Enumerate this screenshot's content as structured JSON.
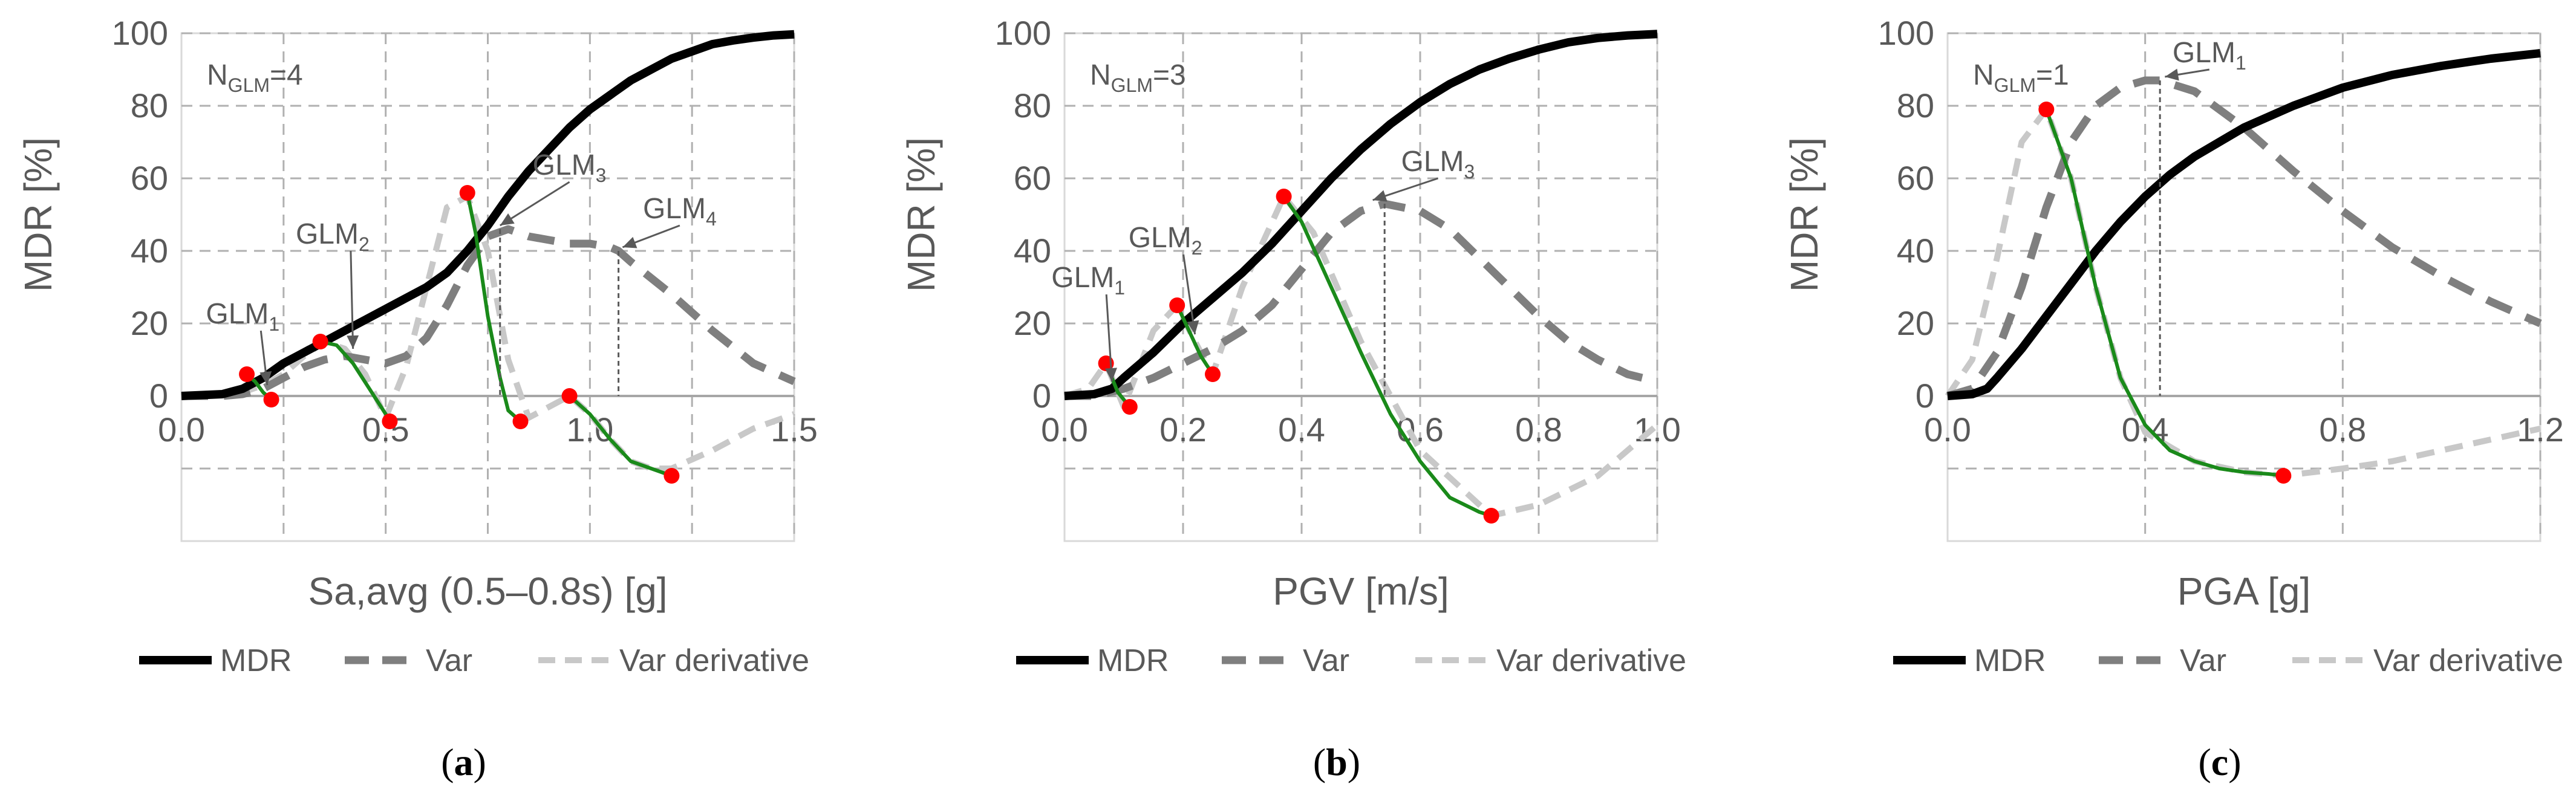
{
  "figure": {
    "colors": {
      "mdr": "#000000",
      "var": "#7f7f7f",
      "var_derivative": "#c8c8c8",
      "segment": "#1a8a1a",
      "point": "#ff0000",
      "grid": "#b0b0b0",
      "axis_text": "#595959",
      "frame": "#d9d9d9"
    }
  },
  "chart_data": [
    {
      "panel": "(a)",
      "panel_letter": "a",
      "type": "line",
      "xlabel": "Sa,avg (0.5–0.8s) [g]",
      "ylabel": "MDR [%]",
      "xlim": [
        0,
        1.5
      ],
      "ylim": [
        -40,
        100
      ],
      "xticks": [
        "0.0",
        "0.5",
        "1.0",
        "1.5"
      ],
      "xtick_values": [
        0,
        0.5,
        1.0,
        1.5
      ],
      "xgrid": [
        0.25,
        0.5,
        0.75,
        1.0,
        1.25,
        1.5
      ],
      "yticks": [
        "100",
        "80",
        "60",
        "40",
        "20",
        "0"
      ],
      "ytick_values": [
        100,
        80,
        60,
        40,
        20,
        0
      ],
      "ngl_label": {
        "prefix": "N",
        "sub": "GLM",
        "suffix": "=4"
      },
      "legend": [
        "MDR",
        "Var",
        "Var derivative"
      ],
      "series": [
        {
          "name": "MDR",
          "style": "mdr",
          "x": [
            0,
            0.1,
            0.15,
            0.2,
            0.25,
            0.3,
            0.35,
            0.4,
            0.45,
            0.5,
            0.55,
            0.6,
            0.65,
            0.7,
            0.75,
            0.8,
            0.85,
            0.9,
            0.95,
            1.0,
            1.05,
            1.1,
            1.15,
            1.2,
            1.25,
            1.3,
            1.35,
            1.4,
            1.45,
            1.5
          ],
          "y": [
            0,
            0.5,
            2,
            5,
            9,
            12,
            15,
            18,
            21,
            24,
            27,
            30,
            34,
            40,
            47,
            55,
            62,
            68,
            74,
            79,
            83,
            87,
            90,
            93,
            95,
            97,
            98,
            98.8,
            99.4,
            99.7
          ]
        },
        {
          "name": "Var",
          "style": "var",
          "x": [
            0,
            0.1,
            0.15,
            0.2,
            0.25,
            0.3,
            0.35,
            0.4,
            0.45,
            0.5,
            0.55,
            0.6,
            0.65,
            0.7,
            0.75,
            0.8,
            0.85,
            0.9,
            0.95,
            1.0,
            1.05,
            1.07,
            1.1,
            1.2,
            1.3,
            1.4,
            1.5
          ],
          "y": [
            0,
            0,
            0.5,
            2,
            5,
            8,
            10,
            11,
            10,
            9,
            11,
            16,
            25,
            36,
            44,
            46,
            44,
            43,
            42,
            42,
            41,
            40,
            37,
            28,
            18,
            9,
            4
          ]
        },
        {
          "name": "Var derivative",
          "style": "deriv",
          "x": [
            0,
            0.15,
            0.2,
            0.25,
            0.3,
            0.35,
            0.4,
            0.45,
            0.5,
            0.55,
            0.6,
            0.65,
            0.7,
            0.75,
            0.8,
            0.85,
            0.9,
            0.95,
            1.0,
            1.05,
            1.1,
            1.15,
            1.2,
            1.3,
            1.4,
            1.5
          ],
          "y": [
            0,
            1,
            3,
            6,
            11,
            15,
            13,
            6,
            -6,
            8,
            30,
            52,
            55,
            40,
            10,
            -6,
            -3,
            0,
            -5,
            -12,
            -18,
            -20,
            -20,
            -15,
            -9,
            -5
          ]
        },
        {
          "name": "GLM segment 1",
          "style": "segment",
          "x": [
            0.16,
            0.18,
            0.2,
            0.22
          ],
          "y": [
            6,
            4,
            1,
            -1
          ]
        },
        {
          "name": "GLM segment 2",
          "style": "segment",
          "x": [
            0.34,
            0.38,
            0.42,
            0.46,
            0.5,
            0.51
          ],
          "y": [
            15,
            14,
            9,
            2,
            -5,
            -7
          ]
        },
        {
          "name": "GLM segment 3",
          "style": "segment",
          "x": [
            0.7,
            0.72,
            0.75,
            0.78,
            0.8,
            0.83
          ],
          "y": [
            56,
            45,
            22,
            5,
            -4,
            -7
          ]
        },
        {
          "name": "GLM segment 4",
          "style": "segment",
          "x": [
            0.95,
            1.0,
            1.05,
            1.1,
            1.15,
            1.2
          ],
          "y": [
            0,
            -5,
            -12,
            -18,
            -20,
            -22
          ]
        }
      ],
      "points": [
        {
          "x": 0.16,
          "y": 6
        },
        {
          "x": 0.22,
          "y": -1
        },
        {
          "x": 0.34,
          "y": 15
        },
        {
          "x": 0.51,
          "y": -7
        },
        {
          "x": 0.7,
          "y": 56
        },
        {
          "x": 0.83,
          "y": -7
        },
        {
          "x": 0.95,
          "y": 0
        },
        {
          "x": 1.2,
          "y": -22
        }
      ],
      "droplines": [
        {
          "x": 0.78,
          "y": 46
        },
        {
          "x": 1.07,
          "y": 40
        }
      ],
      "annotations": [
        {
          "sub": "1",
          "label_x": 0.15,
          "label_y": 20,
          "arrow_x": 0.21,
          "arrow_y": 3
        },
        {
          "sub": "2",
          "label_x": 0.37,
          "label_y": 42,
          "arrow_x": 0.42,
          "arrow_y": 13
        },
        {
          "sub": "3",
          "label_x": 0.95,
          "label_y": 61,
          "arrow_x": 0.78,
          "arrow_y": 47
        },
        {
          "sub": "4",
          "label_x": 1.22,
          "label_y": 49,
          "arrow_x": 1.08,
          "arrow_y": 41
        }
      ]
    },
    {
      "panel": "(b)",
      "panel_letter": "b",
      "type": "line",
      "xlabel": "PGV [m/s]",
      "ylabel": "MDR [%]",
      "xlim": [
        0,
        1.0
      ],
      "ylim": [
        -40,
        100
      ],
      "xticks": [
        "0.0",
        "0.2",
        "0.4",
        "0.6",
        "0.8",
        "1.0"
      ],
      "xtick_values": [
        0,
        0.2,
        0.4,
        0.6,
        0.8,
        1.0
      ],
      "xgrid": [
        0.2,
        0.4,
        0.6,
        0.8,
        1.0
      ],
      "yticks": [
        "100",
        "80",
        "60",
        "40",
        "20",
        "0"
      ],
      "ytick_values": [
        100,
        80,
        60,
        40,
        20,
        0
      ],
      "ngl_label": {
        "prefix": "N",
        "sub": "GLM",
        "suffix": "=3"
      },
      "legend": [
        "MDR",
        "Var",
        "Var derivative"
      ],
      "series": [
        {
          "name": "MDR",
          "style": "mdr",
          "x": [
            0,
            0.05,
            0.08,
            0.1,
            0.15,
            0.2,
            0.25,
            0.3,
            0.35,
            0.4,
            0.45,
            0.5,
            0.55,
            0.6,
            0.65,
            0.7,
            0.75,
            0.8,
            0.85,
            0.9,
            0.95,
            1.0
          ],
          "y": [
            0,
            0.5,
            2,
            5,
            12,
            20,
            27,
            34,
            42,
            51,
            60,
            68,
            75,
            81,
            86,
            90,
            93,
            95.5,
            97.5,
            98.7,
            99.4,
            99.8
          ]
        },
        {
          "name": "Var",
          "style": "var",
          "x": [
            0,
            0.05,
            0.1,
            0.15,
            0.2,
            0.25,
            0.3,
            0.35,
            0.4,
            0.45,
            0.5,
            0.54,
            0.6,
            0.65,
            0.7,
            0.75,
            0.8,
            0.85,
            0.9,
            0.95,
            1.0
          ],
          "y": [
            0,
            0,
            2,
            5,
            9,
            13,
            18,
            25,
            35,
            45,
            51,
            53,
            51,
            46,
            38,
            30,
            22,
            15,
            10,
            6,
            4
          ]
        },
        {
          "name": "Var derivative",
          "style": "deriv",
          "x": [
            0,
            0.04,
            0.07,
            0.1,
            0.15,
            0.19,
            0.22,
            0.25,
            0.3,
            0.37,
            0.42,
            0.5,
            0.6,
            0.72,
            0.8,
            0.9,
            1.0
          ],
          "y": [
            0,
            2,
            9,
            -3,
            18,
            25,
            15,
            6,
            30,
            55,
            45,
            15,
            -15,
            -33,
            -30,
            -22,
            -8
          ]
        },
        {
          "name": "GLM segment 1",
          "style": "segment",
          "x": [
            0.07,
            0.08,
            0.09,
            0.11
          ],
          "y": [
            9,
            5,
            1,
            -3
          ]
        },
        {
          "name": "GLM segment 2",
          "style": "segment",
          "x": [
            0.19,
            0.21,
            0.23,
            0.25
          ],
          "y": [
            25,
            18,
            11,
            6
          ]
        },
        {
          "name": "GLM segment 3",
          "style": "segment",
          "x": [
            0.37,
            0.4,
            0.45,
            0.5,
            0.55,
            0.6,
            0.65,
            0.7,
            0.72
          ],
          "y": [
            55,
            48,
            30,
            12,
            -5,
            -18,
            -28,
            -32,
            -33
          ]
        }
      ],
      "points": [
        {
          "x": 0.07,
          "y": 9
        },
        {
          "x": 0.11,
          "y": -3
        },
        {
          "x": 0.19,
          "y": 25
        },
        {
          "x": 0.25,
          "y": 6
        },
        {
          "x": 0.37,
          "y": 55
        },
        {
          "x": 0.72,
          "y": -33
        }
      ],
      "droplines": [
        {
          "x": 0.54,
          "y": 53
        }
      ],
      "annotations": [
        {
          "sub": "1",
          "label_x": 0.04,
          "label_y": 30,
          "arrow_x": 0.08,
          "arrow_y": 4
        },
        {
          "sub": "2",
          "label_x": 0.17,
          "label_y": 41,
          "arrow_x": 0.22,
          "arrow_y": 17
        },
        {
          "sub": "3",
          "label_x": 0.63,
          "label_y": 62,
          "arrow_x": 0.52,
          "arrow_y": 54
        }
      ]
    },
    {
      "panel": "(c)",
      "panel_letter": "c",
      "type": "line",
      "xlabel": "PGA [g]",
      "ylabel": "MDR [%]",
      "xlim": [
        0,
        1.2
      ],
      "ylim": [
        -40,
        100
      ],
      "xticks": [
        "0.0",
        "0.4",
        "0.8",
        "1.2"
      ],
      "xtick_values": [
        0,
        0.4,
        0.8,
        1.2
      ],
      "xgrid": [
        0.4,
        0.8,
        1.2
      ],
      "yticks": [
        "100",
        "80",
        "60",
        "40",
        "20",
        "0"
      ],
      "ytick_values": [
        100,
        80,
        60,
        40,
        20,
        0
      ],
      "ngl_label": {
        "prefix": "N",
        "sub": "GLM",
        "suffix": "=1"
      },
      "legend": [
        "MDR",
        "Var",
        "Var derivative"
      ],
      "series": [
        {
          "name": "MDR",
          "style": "mdr",
          "x": [
            0,
            0.05,
            0.08,
            0.1,
            0.15,
            0.2,
            0.25,
            0.3,
            0.35,
            0.4,
            0.45,
            0.5,
            0.6,
            0.7,
            0.8,
            0.9,
            1.0,
            1.1,
            1.2
          ],
          "y": [
            0,
            0.5,
            2,
            5,
            13,
            22,
            31,
            40,
            48,
            55,
            61,
            66,
            74,
            80,
            85,
            88.5,
            91,
            93,
            94.5
          ]
        },
        {
          "name": "Var",
          "style": "var",
          "x": [
            0,
            0.05,
            0.1,
            0.15,
            0.2,
            0.25,
            0.3,
            0.35,
            0.4,
            0.43,
            0.5,
            0.6,
            0.7,
            0.8,
            0.9,
            1.0,
            1.1,
            1.2
          ],
          "y": [
            0,
            2,
            12,
            30,
            52,
            70,
            80,
            85,
            87,
            87,
            84,
            74,
            62,
            51,
            41,
            33,
            26,
            20
          ]
        },
        {
          "name": "Var derivative",
          "style": "deriv",
          "x": [
            0,
            0.05,
            0.1,
            0.15,
            0.2,
            0.25,
            0.3,
            0.35,
            0.4,
            0.5,
            0.6,
            0.68,
            0.8,
            0.9,
            1.0,
            1.1,
            1.2
          ],
          "y": [
            0,
            10,
            38,
            70,
            79,
            60,
            30,
            5,
            -10,
            -18,
            -21,
            -22,
            -20,
            -18,
            -15,
            -12,
            -9
          ]
        },
        {
          "name": "GLM segment 1",
          "style": "segment",
          "x": [
            0.2,
            0.25,
            0.3,
            0.35,
            0.4,
            0.45,
            0.5,
            0.55,
            0.6,
            0.65,
            0.68
          ],
          "y": [
            79,
            60,
            30,
            5,
            -8,
            -15,
            -18,
            -20,
            -21,
            -21.5,
            -22
          ]
        }
      ],
      "points": [
        {
          "x": 0.2,
          "y": 79
        },
        {
          "x": 0.68,
          "y": -22
        }
      ],
      "droplines": [
        {
          "x": 0.43,
          "y": 87
        }
      ],
      "annotations": [
        {
          "sub": "1",
          "label_x": 0.53,
          "label_y": 92,
          "arrow_x": 0.44,
          "arrow_y": 88
        }
      ]
    }
  ]
}
